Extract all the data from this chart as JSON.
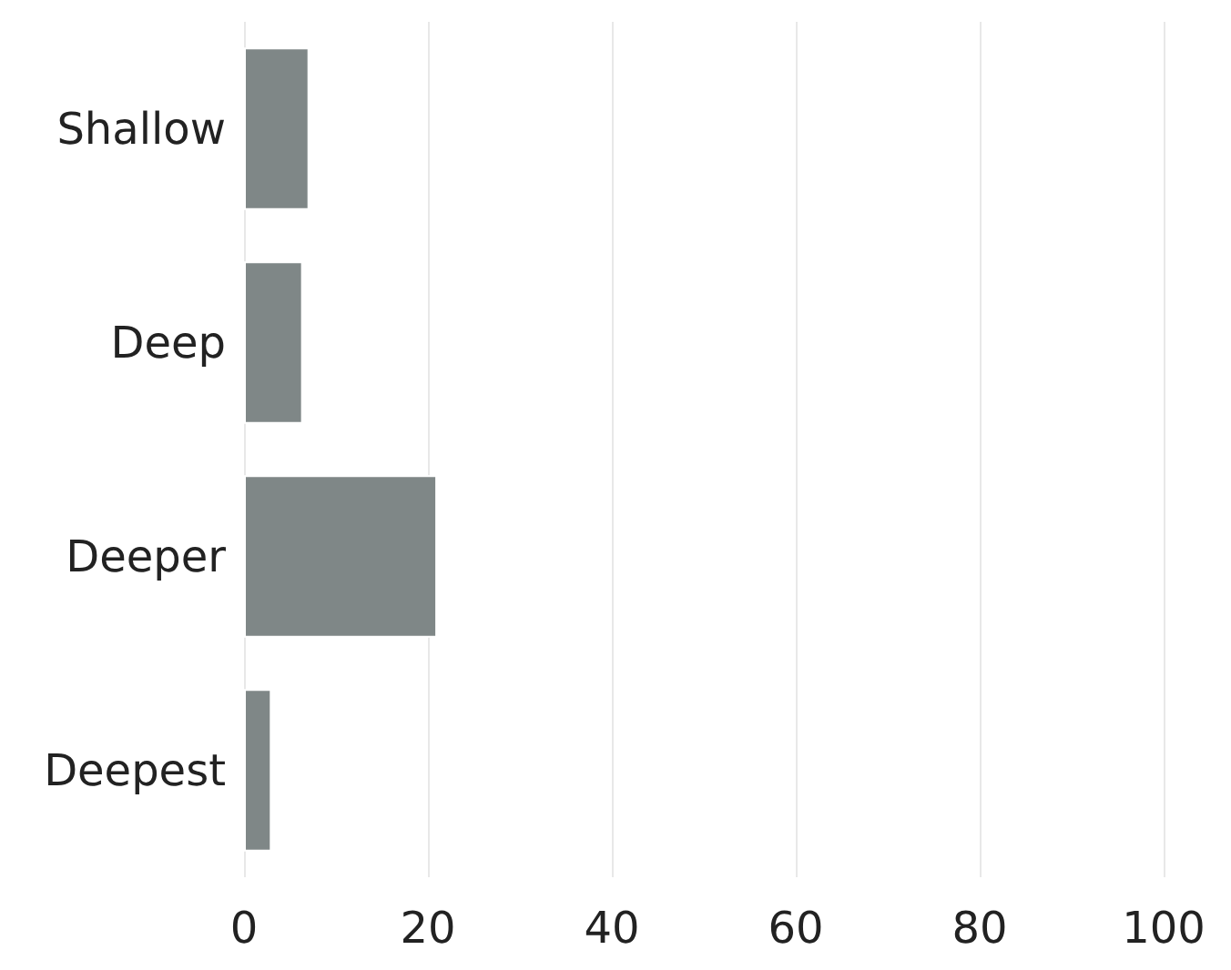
{
  "chart_data": {
    "type": "bar",
    "orientation": "horizontal",
    "categories": [
      "Shallow",
      "Deep",
      "Deeper",
      "Deepest"
    ],
    "values": [
      7.1,
      6.4,
      21,
      3
    ],
    "color": "#7f8787",
    "xlim": [
      0,
      100
    ],
    "xticks": [
      0,
      20,
      40,
      60,
      80,
      100
    ],
    "grid": "x"
  }
}
